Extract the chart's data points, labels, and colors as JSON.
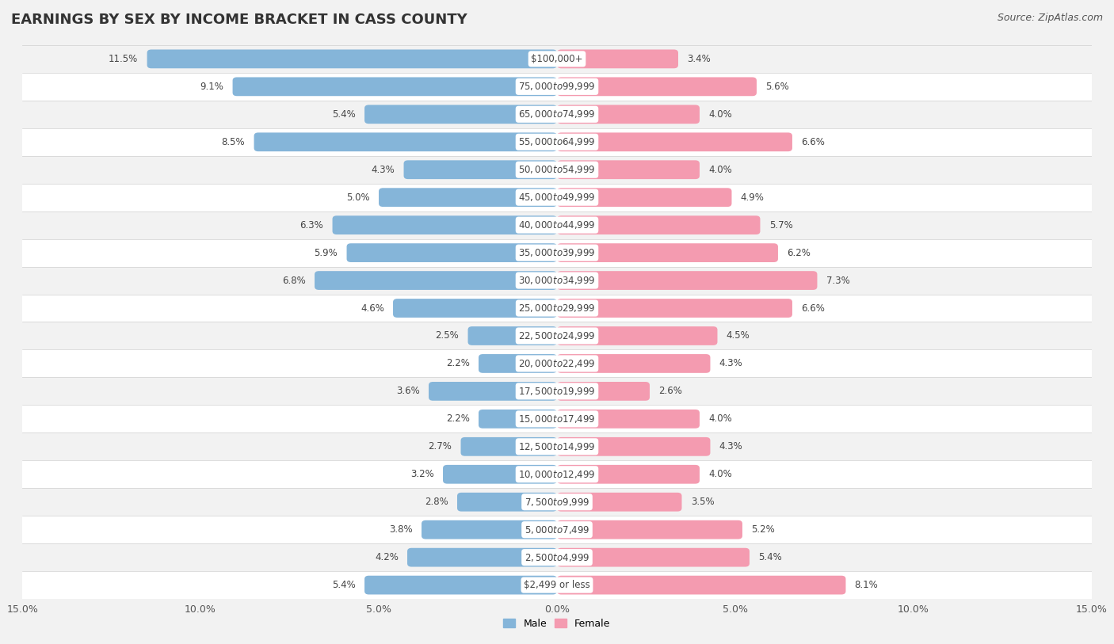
{
  "title": "EARNINGS BY SEX BY INCOME BRACKET IN CASS COUNTY",
  "source": "Source: ZipAtlas.com",
  "categories": [
    "$2,499 or less",
    "$2,500 to $4,999",
    "$5,000 to $7,499",
    "$7,500 to $9,999",
    "$10,000 to $12,499",
    "$12,500 to $14,999",
    "$15,000 to $17,499",
    "$17,500 to $19,999",
    "$20,000 to $22,499",
    "$22,500 to $24,999",
    "$25,000 to $29,999",
    "$30,000 to $34,999",
    "$35,000 to $39,999",
    "$40,000 to $44,999",
    "$45,000 to $49,999",
    "$50,000 to $54,999",
    "$55,000 to $64,999",
    "$65,000 to $74,999",
    "$75,000 to $99,999",
    "$100,000+"
  ],
  "male_values": [
    5.4,
    4.2,
    3.8,
    2.8,
    3.2,
    2.7,
    2.2,
    3.6,
    2.2,
    2.5,
    4.6,
    6.8,
    5.9,
    6.3,
    5.0,
    4.3,
    8.5,
    5.4,
    9.1,
    11.5
  ],
  "female_values": [
    8.1,
    5.4,
    5.2,
    3.5,
    4.0,
    4.3,
    4.0,
    2.6,
    4.3,
    4.5,
    6.6,
    7.3,
    6.2,
    5.7,
    4.9,
    4.0,
    6.6,
    4.0,
    5.6,
    3.4
  ],
  "male_color": "#85b5d9",
  "female_color": "#f49bb0",
  "xlim": 15.0,
  "row_color_even": "#f2f2f2",
  "row_color_odd": "#ffffff",
  "title_fontsize": 13,
  "label_fontsize": 9,
  "tick_fontsize": 9,
  "source_fontsize": 9,
  "cat_fontsize": 8.5,
  "val_fontsize": 8.5
}
